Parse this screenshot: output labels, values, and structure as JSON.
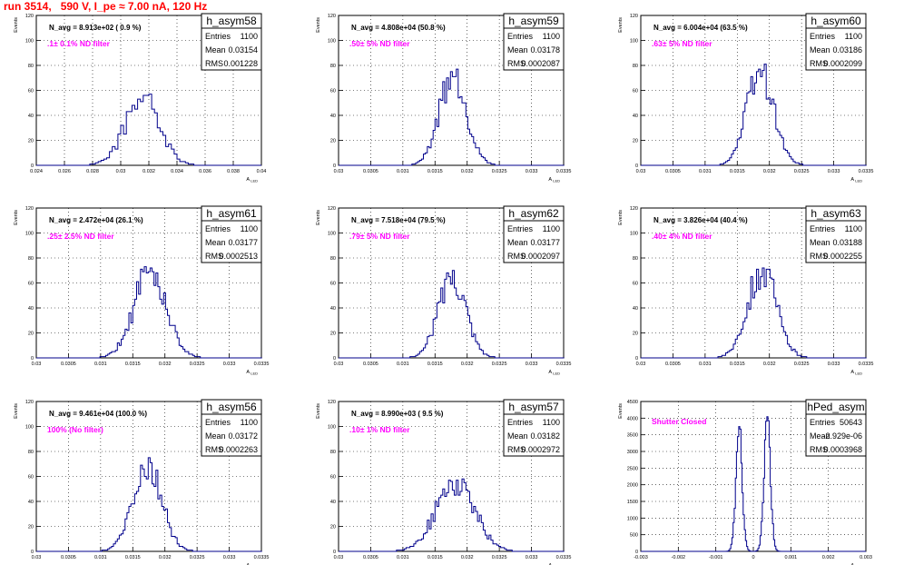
{
  "title": "run 3514,   590 V, I_pe ≈ 7.00 nA, 120 Hz",
  "y_axis_label": "Events",
  "x_axis_label": "A",
  "x_axis_subscript": "LED",
  "stat_labels": [
    "Entries",
    "Mean",
    "RMS"
  ],
  "colors": {
    "title": "#ff0000",
    "histogram": "#00008b",
    "annotation": "#ff00ff"
  },
  "chart_data": [
    {
      "type": "histogram",
      "name": "h_asym58",
      "n_avg": "N_avg = 8.913e+02 ( 0.9 %)",
      "filter": ".1± 0.1% ND filter",
      "entries": "1100",
      "mean": "0.03154",
      "rms": "0.001228",
      "xlim": [
        0.024,
        0.04
      ],
      "ylim": [
        0,
        120
      ],
      "xticks": [
        "0.024",
        "0.026",
        "0.028",
        "0.03",
        "0.032",
        "0.034",
        "0.036",
        "0.038",
        "0.04"
      ],
      "yticks": [
        "0",
        "20",
        "40",
        "60",
        "80",
        "100",
        "120"
      ],
      "gen": {
        "mean": 0.03154,
        "rms": 0.001228,
        "bin": 0.0002,
        "peak": 57,
        "seed": 58
      },
      "grid": true
    },
    {
      "type": "histogram",
      "name": "h_asym59",
      "n_avg": "N_avg = 4.808e+04 (50.8 %)",
      "filter": ".50± 5% ND filter",
      "entries": "1100",
      "mean": "0.03178",
      "rms": "0.0002087",
      "xlim": [
        0.03,
        0.0335
      ],
      "ylim": [
        0,
        120
      ],
      "xticks": [
        "0.03",
        "0.0305",
        "0.031",
        "0.0315",
        "0.032",
        "0.0325",
        "0.033",
        "0.0335"
      ],
      "yticks": [
        "0",
        "20",
        "40",
        "60",
        "80",
        "100",
        "120"
      ],
      "gen": {
        "mean": 0.03178,
        "rms": 0.0002087,
        "bin": 3e-05,
        "peak": 80,
        "seed": 59
      },
      "grid": true
    },
    {
      "type": "histogram",
      "name": "h_asym60",
      "n_avg": "N_avg = 6.004e+04 (63.5 %)",
      "filter": ".63± 5% ND filter",
      "entries": "1100",
      "mean": "0.03186",
      "rms": "0.0002099",
      "xlim": [
        0.03,
        0.0335
      ],
      "ylim": [
        0,
        120
      ],
      "xticks": [
        "0.03",
        "0.0305",
        "0.031",
        "0.0315",
        "0.032",
        "0.0325",
        "0.033",
        "0.0335"
      ],
      "yticks": [
        "0",
        "20",
        "40",
        "60",
        "80",
        "100",
        "120"
      ],
      "gen": {
        "mean": 0.03186,
        "rms": 0.0002099,
        "bin": 3e-05,
        "peak": 81,
        "seed": 60
      },
      "grid": true
    },
    {
      "type": "histogram",
      "name": "h_asym61",
      "n_avg": "N_avg = 2.472e+04 (26.1 %)",
      "filter": ".25± 2.5% ND filter",
      "entries": "1100",
      "mean": "0.03177",
      "rms": "0.0002513",
      "xlim": [
        0.03,
        0.0335
      ],
      "ylim": [
        0,
        120
      ],
      "xticks": [
        "0.03",
        "0.0305",
        "0.031",
        "0.0315",
        "0.032",
        "0.0325",
        "0.033",
        "0.0335"
      ],
      "yticks": [
        "0",
        "20",
        "40",
        "60",
        "80",
        "100",
        "120"
      ],
      "gen": {
        "mean": 0.03177,
        "rms": 0.0002513,
        "bin": 3e-05,
        "peak": 73,
        "seed": 61
      },
      "grid": true
    },
    {
      "type": "histogram",
      "name": "h_asym62",
      "n_avg": "N_avg = 7.518e+04 (79.5 %)",
      "filter": ".79± 5% ND filter",
      "entries": "1100",
      "mean": "0.03177",
      "rms": "0.0002097",
      "xlim": [
        0.03,
        0.0335
      ],
      "ylim": [
        0,
        120
      ],
      "xticks": [
        "0.03",
        "0.0305",
        "0.031",
        "0.0315",
        "0.032",
        "0.0325",
        "0.033",
        "0.0335"
      ],
      "yticks": [
        "0",
        "20",
        "40",
        "60",
        "80",
        "100",
        "120"
      ],
      "gen": {
        "mean": 0.03177,
        "rms": 0.0002097,
        "bin": 3e-05,
        "peak": 73,
        "seed": 62
      },
      "grid": true
    },
    {
      "type": "histogram",
      "name": "h_asym63",
      "n_avg": "N_avg = 3.826e+04 (40.4 %)",
      "filter": ".40± 4% ND filter",
      "entries": "1100",
      "mean": "0.03188",
      "rms": "0.0002255",
      "xlim": [
        0.03,
        0.0335
      ],
      "ylim": [
        0,
        120
      ],
      "xticks": [
        "0.03",
        "0.0305",
        "0.031",
        "0.0315",
        "0.032",
        "0.0325",
        "0.033",
        "0.0335"
      ],
      "yticks": [
        "0",
        "20",
        "40",
        "60",
        "80",
        "100",
        "120"
      ],
      "gen": {
        "mean": 0.03188,
        "rms": 0.0002255,
        "bin": 3e-05,
        "peak": 75,
        "seed": 63
      },
      "grid": true
    },
    {
      "type": "histogram",
      "name": "h_asym56",
      "n_avg": "N_avg = 9.461e+04 (100.0 %)",
      "filter": "100% (No filter)",
      "entries": "1100",
      "mean": "0.03172",
      "rms": "0.0002263",
      "xlim": [
        0.03,
        0.0335
      ],
      "ylim": [
        0,
        120
      ],
      "xticks": [
        "0.03",
        "0.0305",
        "0.031",
        "0.0315",
        "0.032",
        "0.0325",
        "0.033",
        "0.0335"
      ],
      "yticks": [
        "0",
        "20",
        "40",
        "60",
        "80",
        "100",
        "120"
      ],
      "gen": {
        "mean": 0.03172,
        "rms": 0.0002263,
        "bin": 3e-05,
        "peak": 76,
        "seed": 56
      },
      "grid": true
    },
    {
      "type": "histogram",
      "name": "h_asym57",
      "n_avg": "N_avg = 8.990e+03 ( 9.5 %)",
      "filter": ".10± 1% ND filter",
      "entries": "1100",
      "mean": "0.03182",
      "rms": "0.0002972",
      "xlim": [
        0.03,
        0.0335
      ],
      "ylim": [
        0,
        120
      ],
      "xticks": [
        "0.03",
        "0.0305",
        "0.031",
        "0.0315",
        "0.032",
        "0.0325",
        "0.033",
        "0.0335"
      ],
      "yticks": [
        "0",
        "20",
        "40",
        "60",
        "80",
        "100",
        "120"
      ],
      "gen": {
        "mean": 0.03182,
        "rms": 0.0002972,
        "bin": 3e-05,
        "peak": 60,
        "seed": 57
      },
      "grid": true
    },
    {
      "type": "histogram",
      "name": "hPed_asym",
      "n_avg": "",
      "filter": "Shutter Closed",
      "entries": "50643",
      "mean": "-2.929e-06",
      "rms": "0.0003968",
      "xlim": [
        -0.003,
        0.003
      ],
      "ylim": [
        0,
        4500
      ],
      "xticks": [
        "-0.003",
        "-0.002",
        "-0.001",
        "0",
        "0.001",
        "0.002",
        "0.003"
      ],
      "yticks": [
        "0",
        "500",
        "1000",
        "1500",
        "2000",
        "2500",
        "3000",
        "3500",
        "4000",
        "4500"
      ],
      "gen": {
        "bimodal": true,
        "modes": [
          -0.00038,
          0.00037
        ],
        "sigma": 8.5e-05,
        "bin": 3e-05,
        "peaks": [
          4050,
          4400
        ],
        "seed": 99
      },
      "grid": true
    }
  ]
}
